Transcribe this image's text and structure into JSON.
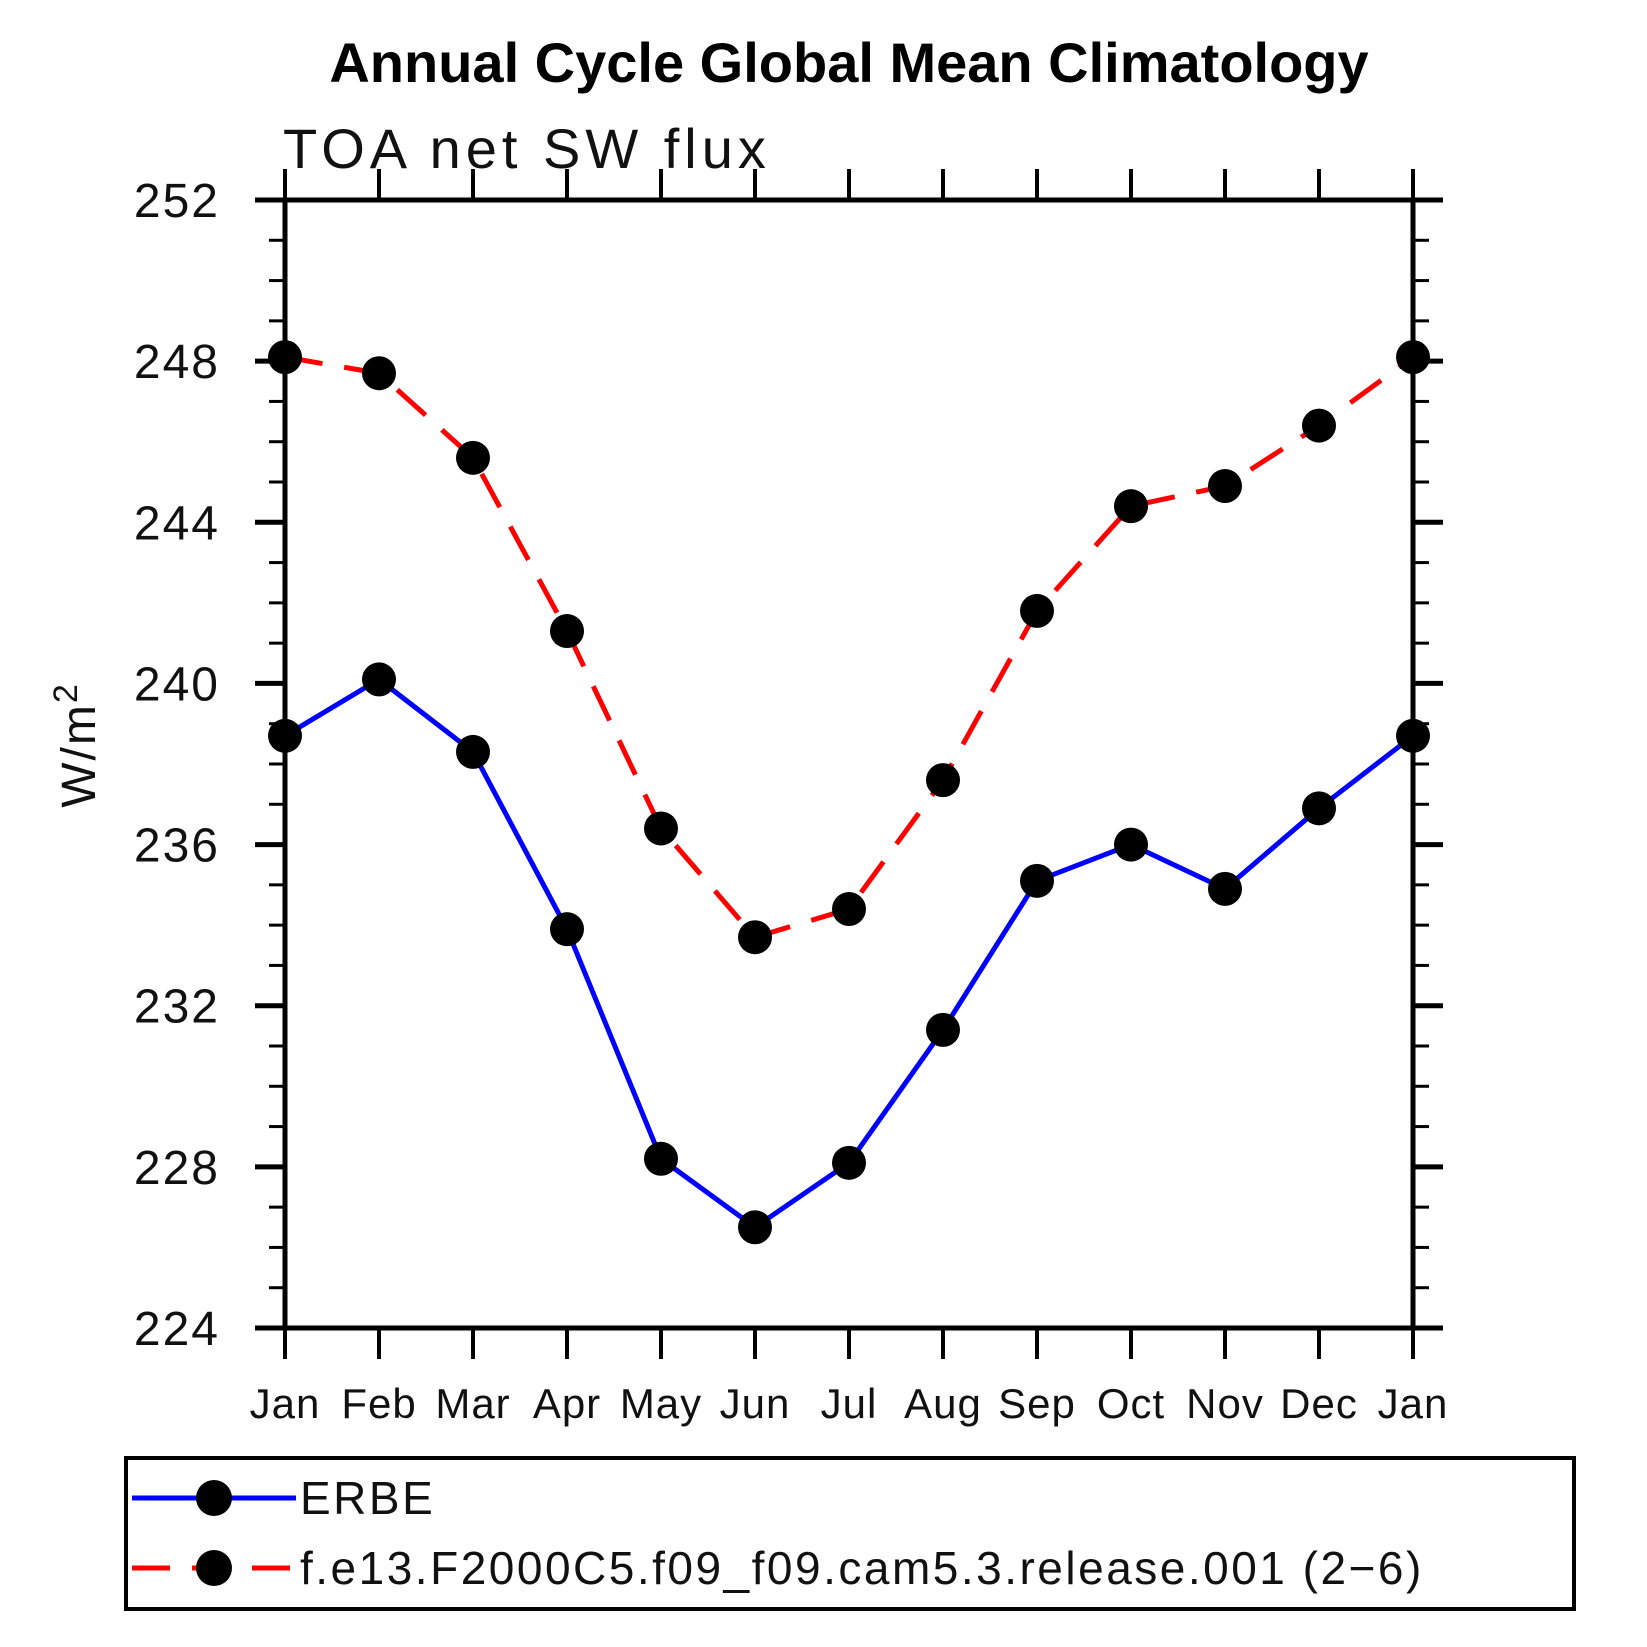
{
  "title": "Annual Cycle Global Mean Climatology",
  "subtitle": "TOA net SW flux",
  "ylabel": {
    "base": "W/m",
    "exponent": "2"
  },
  "colors": {
    "erbe_line": "#0000ff",
    "model_line": "#ff0000",
    "marker": "#000000",
    "axis": "#000000"
  },
  "chart_data": {
    "type": "line",
    "title": "TOA net SW flux",
    "suptitle": "Annual Cycle Global Mean Climatology",
    "xlabel": "",
    "ylabel": "W/m2",
    "x_labels": [
      "Jan",
      "Feb",
      "Mar",
      "Apr",
      "May",
      "Jun",
      "Jul",
      "Aug",
      "Sep",
      "Oct",
      "Nov",
      "Dec",
      "Jan"
    ],
    "ylim": [
      224,
      252
    ],
    "y_major_ticks": [
      224,
      228,
      232,
      236,
      240,
      244,
      248,
      252
    ],
    "y_minor_step": 1,
    "grid": false,
    "legend_position": "bottom",
    "series": [
      {
        "name": "ERBE",
        "style": "solid",
        "color": "#0000ff",
        "marker": "black-circle",
        "values": [
          238.7,
          240.1,
          238.3,
          233.9,
          228.2,
          226.5,
          228.1,
          231.4,
          235.1,
          236.0,
          234.9,
          236.9,
          238.7
        ]
      },
      {
        "name": "f.e13.F2000C5.f09_f09.cam5.3.release.001 (2−6)",
        "style": "dashed",
        "color": "#ff0000",
        "marker": "black-circle",
        "values": [
          248.1,
          247.7,
          245.6,
          241.3,
          236.4,
          233.7,
          234.4,
          237.6,
          241.8,
          244.4,
          244.9,
          246.4,
          248.1
        ]
      }
    ]
  }
}
